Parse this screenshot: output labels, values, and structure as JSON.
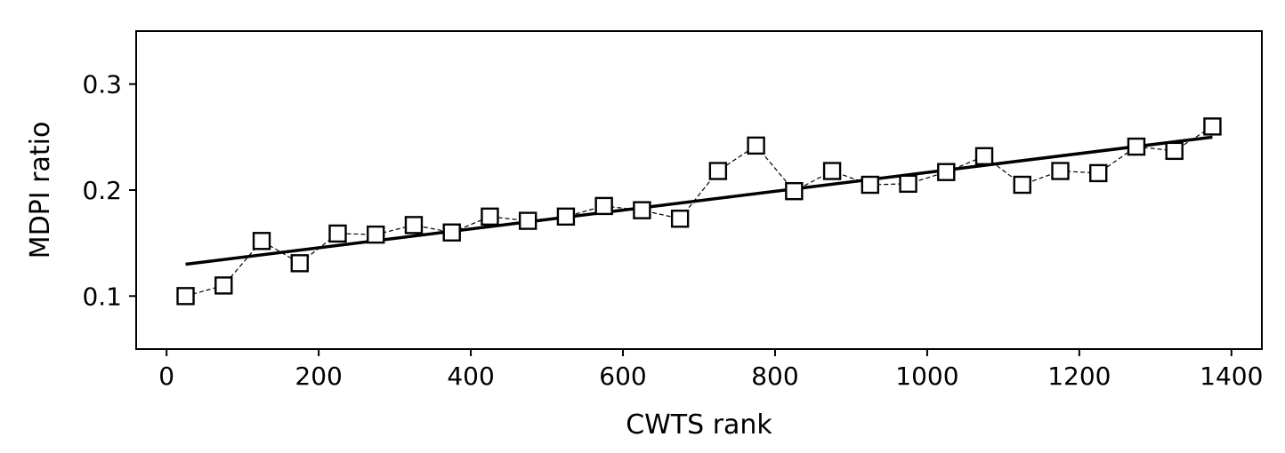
{
  "chart_data": {
    "type": "scatter",
    "title": "",
    "xlabel": "CWTS rank",
    "ylabel": "MDPI ratio",
    "xlim": [
      -40,
      1440
    ],
    "ylim": [
      0.05,
      0.35
    ],
    "xticks": [
      0,
      200,
      400,
      600,
      800,
      1000,
      1200,
      1400
    ],
    "yticks": [
      0.1,
      0.2,
      0.3
    ],
    "xtick_labels": [
      "0",
      "200",
      "400",
      "600",
      "800",
      "1000",
      "1200",
      "1400"
    ],
    "ytick_labels": [
      "0.1",
      "0.2",
      "0.3"
    ],
    "grid": false,
    "legend": null,
    "series": [
      {
        "style": "dashed line with open square markers",
        "x": [
          25,
          75,
          125,
          175,
          225,
          275,
          325,
          375,
          425,
          475,
          525,
          575,
          625,
          675,
          725,
          775,
          825,
          875,
          925,
          975,
          1025,
          1075,
          1125,
          1175,
          1225,
          1275,
          1325,
          1375
        ],
        "y": [
          0.1,
          0.11,
          0.152,
          0.131,
          0.159,
          0.158,
          0.167,
          0.16,
          0.175,
          0.171,
          0.175,
          0.185,
          0.181,
          0.173,
          0.218,
          0.242,
          0.199,
          0.218,
          0.205,
          0.206,
          0.217,
          0.232,
          0.205,
          0.218,
          0.216,
          0.241,
          0.237,
          0.26
        ]
      },
      {
        "style": "solid fit line",
        "x": [
          25,
          1375
        ],
        "y": [
          0.13,
          0.25
        ]
      }
    ]
  }
}
